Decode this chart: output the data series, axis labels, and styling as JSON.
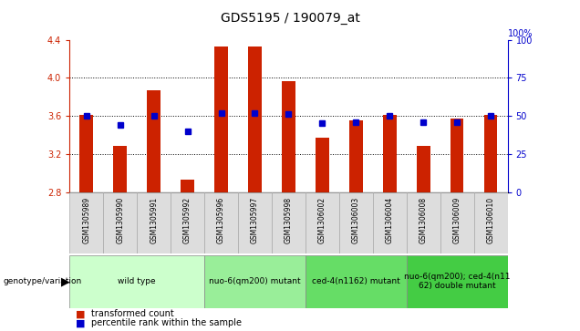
{
  "title": "GDS5195 / 190079_at",
  "samples": [
    "GSM1305989",
    "GSM1305990",
    "GSM1305991",
    "GSM1305992",
    "GSM1305996",
    "GSM1305997",
    "GSM1305998",
    "GSM1306002",
    "GSM1306003",
    "GSM1306004",
    "GSM1306008",
    "GSM1306009",
    "GSM1306010"
  ],
  "transformed_count": [
    3.61,
    3.28,
    3.87,
    2.93,
    4.33,
    4.33,
    3.96,
    3.37,
    3.55,
    3.61,
    3.28,
    3.57,
    3.61
  ],
  "percentile_rank": [
    50,
    44,
    50,
    40,
    52,
    52,
    51,
    45,
    46,
    50,
    46,
    46,
    50
  ],
  "ylim": [
    2.8,
    4.4
  ],
  "yticks_left": [
    2.8,
    3.2,
    3.6,
    4.0,
    4.4
  ],
  "yticks_right": [
    0,
    25,
    50,
    75,
    100
  ],
  "bar_color": "#CC2200",
  "marker_color": "#0000CC",
  "groups": [
    {
      "label": "wild type",
      "indices": [
        0,
        1,
        2,
        3
      ],
      "color": "#CCFFCC"
    },
    {
      "label": "nuo-6(qm200) mutant",
      "indices": [
        4,
        5,
        6
      ],
      "color": "#99EE99"
    },
    {
      "label": "ced-4(n1162) mutant",
      "indices": [
        7,
        8,
        9
      ],
      "color": "#66DD66"
    },
    {
      "label": "nuo-6(qm200); ced-4(n11\n62) double mutant",
      "indices": [
        10,
        11,
        12
      ],
      "color": "#44CC44"
    }
  ],
  "genotype_label": "genotype/variation",
  "legend_items": [
    {
      "label": "transformed count",
      "color": "#CC2200"
    },
    {
      "label": "percentile rank within the sample",
      "color": "#0000CC"
    }
  ],
  "tick_label_color_left": "#CC2200",
  "tick_label_color_right": "#0000CC",
  "right_axis_top_label": "100%"
}
